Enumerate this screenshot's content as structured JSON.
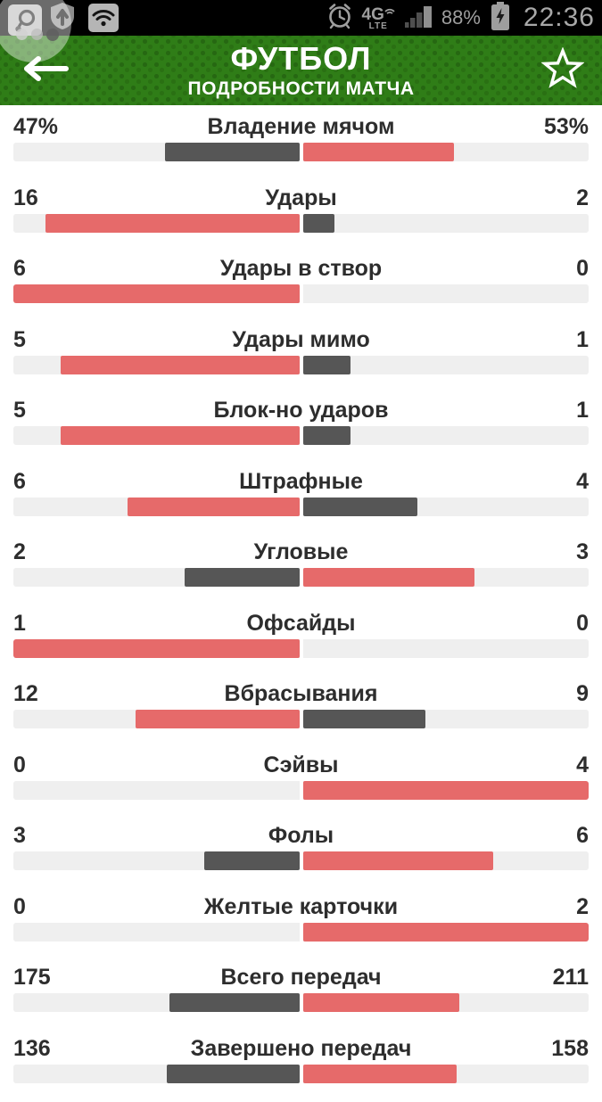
{
  "status_bar": {
    "time": "22:36",
    "battery_percent": "88%",
    "network_type": "4G",
    "network_sub": "LTE"
  },
  "header": {
    "title": "ФУТБОЛ",
    "subtitle": "ПОДРОБНОСТИ МАТЧА"
  },
  "colors": {
    "header_green": "#2f7d17",
    "bar_red": "#e66a6a",
    "bar_dark": "#565656",
    "bar_track": "#efefef",
    "status_icon_gray": "#9e9e9e",
    "text_dark": "#2d2d2d"
  },
  "stats": [
    {
      "label": "Владение мячом",
      "home": "47%",
      "away": "53%",
      "home_value": 47,
      "away_value": 53
    },
    {
      "label": "Удары",
      "home": "16",
      "away": "2",
      "home_value": 16,
      "away_value": 2
    },
    {
      "label": "Удары в створ",
      "home": "6",
      "away": "0",
      "home_value": 6,
      "away_value": 0
    },
    {
      "label": "Удары мимо",
      "home": "5",
      "away": "1",
      "home_value": 5,
      "away_value": 1
    },
    {
      "label": "Блок-но ударов",
      "home": "5",
      "away": "1",
      "home_value": 5,
      "away_value": 1
    },
    {
      "label": "Штрафные",
      "home": "6",
      "away": "4",
      "home_value": 6,
      "away_value": 4
    },
    {
      "label": "Угловые",
      "home": "2",
      "away": "3",
      "home_value": 2,
      "away_value": 3
    },
    {
      "label": "Офсайды",
      "home": "1",
      "away": "0",
      "home_value": 1,
      "away_value": 0
    },
    {
      "label": "Вбрасывания",
      "home": "12",
      "away": "9",
      "home_value": 12,
      "away_value": 9
    },
    {
      "label": "Сэйвы",
      "home": "0",
      "away": "4",
      "home_value": 0,
      "away_value": 4
    },
    {
      "label": "Фолы",
      "home": "3",
      "away": "6",
      "home_value": 3,
      "away_value": 6
    },
    {
      "label": "Желтые карточки",
      "home": "0",
      "away": "2",
      "home_value": 0,
      "away_value": 2
    },
    {
      "label": "Всего передач",
      "home": "175",
      "away": "211",
      "home_value": 175,
      "away_value": 211
    },
    {
      "label": "Завершено передач",
      "home": "136",
      "away": "158",
      "home_value": 136,
      "away_value": 158
    }
  ],
  "chart_data": {
    "type": "bar",
    "orientation": "horizontal-paired",
    "categories": [
      "Владение мячом",
      "Удары",
      "Удары в створ",
      "Удары мимо",
      "Блок-но ударов",
      "Штрафные",
      "Угловые",
      "Офсайды",
      "Вбрасывания",
      "Сэйвы",
      "Фолы",
      "Желтые карточки",
      "Всего передач",
      "Завершено передач"
    ],
    "series": [
      {
        "name": "home",
        "values": [
          47,
          16,
          6,
          5,
          5,
          6,
          2,
          1,
          12,
          0,
          3,
          0,
          175,
          136
        ]
      },
      {
        "name": "away",
        "values": [
          53,
          2,
          0,
          1,
          1,
          4,
          3,
          0,
          9,
          4,
          6,
          2,
          211,
          158
        ]
      }
    ],
    "title": "ПОДРОБНОСТИ МАТЧА",
    "note": "bar length = value/(home+away) of half-track; leader colored red, other dark gray"
  }
}
